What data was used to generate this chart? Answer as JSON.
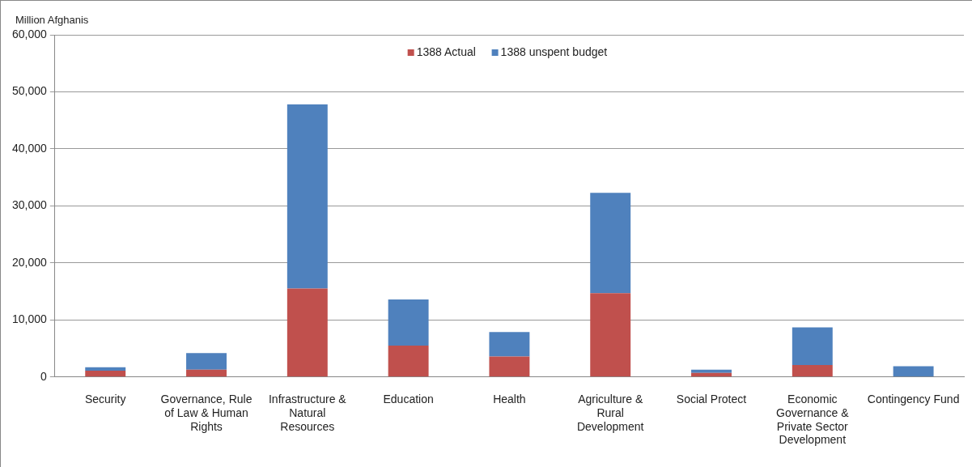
{
  "chart_data": {
    "type": "bar",
    "ylabel": "Million Afghanis",
    "stacked": true,
    "legend": "top",
    "grid": "y",
    "categories": [
      "Security",
      "Governance, Rule of Law & Human Rights",
      "Infrastructure & Natural Resources",
      "Education",
      "Health",
      "Agriculture & Rural Development",
      "Social Protect",
      "Economic Governance & Private Sector Development",
      "Contingency Fund"
    ],
    "series": [
      {
        "name": "1388 Actual",
        "color": "#c0504d",
        "values": [
          1100,
          1300,
          15500,
          5500,
          3600,
          14700,
          700,
          2100,
          0
        ]
      },
      {
        "name": "1388 unspent budget",
        "color": "#4f81bd",
        "values": [
          600,
          2900,
          32300,
          8100,
          4300,
          17600,
          600,
          6600,
          1900
        ]
      }
    ],
    "ylim": [
      0,
      60000
    ],
    "yticks": [
      0,
      {
        "value": 10000,
        "label": "10,000"
      },
      {
        "value": 20000,
        "label": "20,000"
      },
      {
        "value": 30000,
        "label": "30,000"
      },
      {
        "value": 40000,
        "label": "40,000"
      },
      {
        "value": 50000,
        "label": "50,000"
      },
      {
        "value": 60000,
        "label": "60,000"
      }
    ]
  }
}
